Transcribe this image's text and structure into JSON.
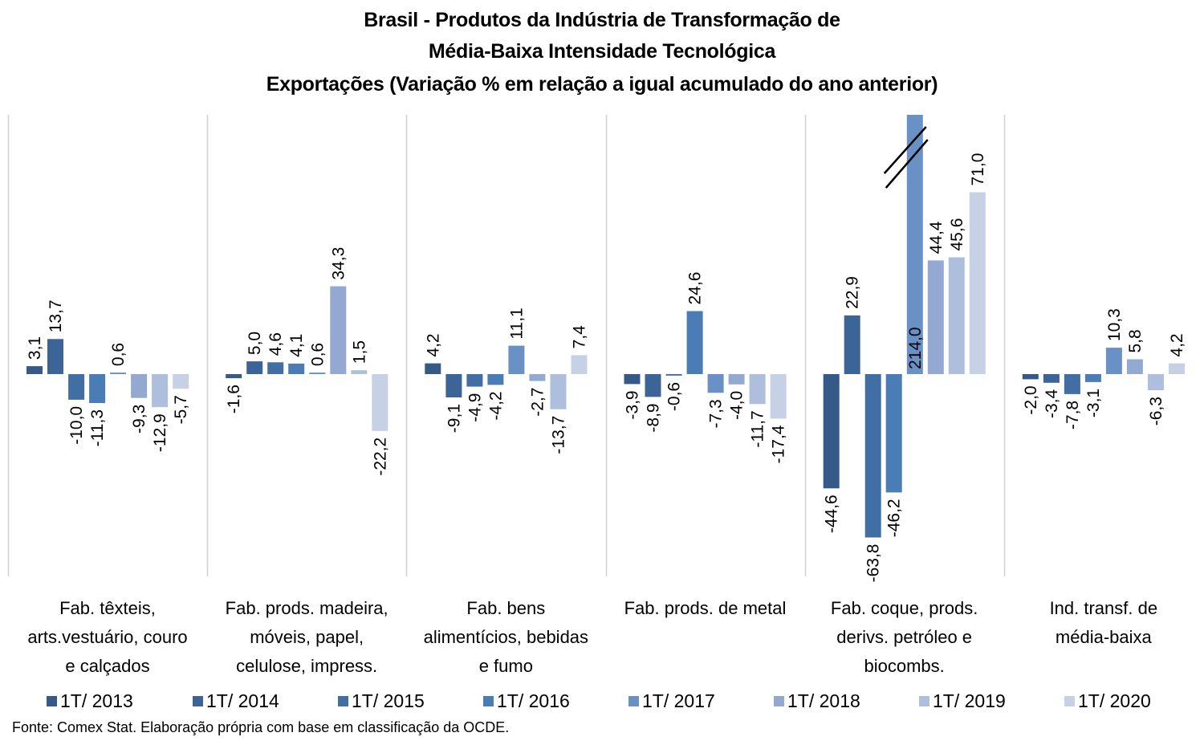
{
  "chart_data": {
    "type": "bar",
    "title": [
      "Brasil - Produtos da Indústria de Transformação de",
      "Média-Baixa Intensidade Tecnológica",
      "Exportações (Variação % em relação a igual acumulado do ano anterior)"
    ],
    "xlabel": "",
    "ylabel": "",
    "ylim": [
      -78,
      102
    ],
    "grid": "vertical category separators",
    "legend_position": "bottom",
    "categories": [
      [
        "Fab. têxteis,",
        "arts.vestuário, couro",
        "e calçados"
      ],
      [
        "Fab. prods. madeira,",
        "móveis, papel,",
        "celulose, impress."
      ],
      [
        "Fab. bens",
        "alimentícios, bebidas",
        "e fumo"
      ],
      [
        "Fab. prods. de metal"
      ],
      [
        "Fab. coque, prods.",
        "derivs. petróleo e",
        "biocombs."
      ],
      [
        "Ind. transf. de",
        "média-baixa"
      ]
    ],
    "series": [
      {
        "name": "1T/ 2013",
        "color": "#355A87",
        "values": [
          3.1,
          -1.6,
          4.2,
          -3.9,
          -44.6,
          -2.0
        ],
        "labels": [
          "3,1",
          "-1,6",
          "4,2",
          "-3,9",
          "-44,6",
          "-2,0"
        ]
      },
      {
        "name": "1T/ 2014",
        "color": "#3D6496",
        "values": [
          13.7,
          5.0,
          -9.1,
          -8.9,
          22.9,
          -3.4
        ],
        "labels": [
          "13,7",
          "5,0",
          "-9,1",
          "-8,9",
          "22,9",
          "-3,4"
        ]
      },
      {
        "name": "1T/ 2015",
        "color": "#426FA3",
        "values": [
          -10.0,
          4.6,
          -4.9,
          -0.6,
          -63.8,
          -7.8
        ],
        "labels": [
          "-10,0",
          "4,6",
          "-4,9",
          "-0,6",
          "-63,8",
          "-7,8"
        ]
      },
      {
        "name": "1T/ 2016",
        "color": "#4A7CB6",
        "values": [
          -11.3,
          4.1,
          -4.2,
          24.6,
          -46.2,
          -3.1
        ],
        "labels": [
          "-11,3",
          "4,1",
          "-4,2",
          "24,6",
          "-46,2",
          "-3,1"
        ]
      },
      {
        "name": "1T/ 2017",
        "color": "#6A91C5",
        "values": [
          0.6,
          0.6,
          11.1,
          -7.3,
          214.0,
          10.3
        ],
        "labels": [
          "0,6",
          "0,6",
          "11,1",
          "-7,3",
          "214,0",
          "10,3"
        ]
      },
      {
        "name": "1T/ 2018",
        "color": "#93A9D1",
        "values": [
          -9.3,
          34.3,
          -2.7,
          -4.0,
          44.4,
          5.8
        ],
        "labels": [
          "-9,3",
          "34,3",
          "-2,7",
          "-4,0",
          "44,4",
          "5,8"
        ]
      },
      {
        "name": "1T/ 2019",
        "color": "#ADBFDD",
        "values": [
          -12.9,
          1.5,
          -13.7,
          -11.7,
          45.6,
          -6.3
        ],
        "labels": [
          "-12,9",
          "1,5",
          "-13,7",
          "-11,7",
          "45,6",
          "-6,3"
        ]
      },
      {
        "name": "1T/ 2020",
        "color": "#C7D1E5",
        "values": [
          -5.7,
          -22.2,
          7.4,
          -17.4,
          71.0,
          4.2
        ],
        "labels": [
          "-5,7",
          "-22,2",
          "7,4",
          "-17,4",
          "71,0",
          "4,2"
        ]
      }
    ],
    "annotations": [
      "axis break marker on 1T/ 2017 bar of 'Fab. coque, prods. derivs. petróleo e biocombs.' (value 214,0 truncated)"
    ]
  },
  "source": "Fonte: Comex Stat.  Elaboração própria com base em classificação da OCDE."
}
